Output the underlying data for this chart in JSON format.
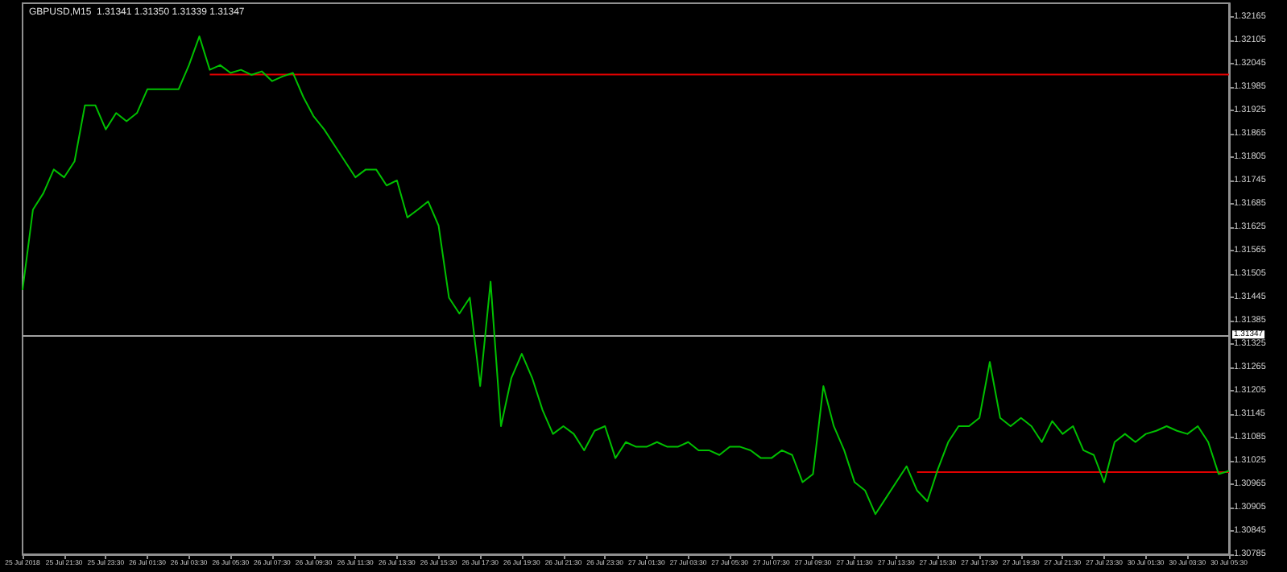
{
  "chart_data": {
    "type": "line",
    "title": "GBPUSD,M15  1.31341 1.31350 1.31339 1.31347",
    "categories": [
      "25 Jul 2018",
      null,
      null,
      null,
      "25 Jul 21:30",
      null,
      null,
      null,
      "25 Jul 23:30",
      null,
      null,
      null,
      "26 Jul 01:30",
      null,
      null,
      null,
      "26 Jul 03:30",
      null,
      null,
      null,
      "26 Jul 05:30",
      null,
      null,
      null,
      "26 Jul 07:30",
      null,
      null,
      null,
      "26 Jul 09:30",
      null,
      null,
      null,
      "26 Jul 11:30",
      null,
      null,
      null,
      "26 Jul 13:30",
      null,
      null,
      null,
      "26 Jul 15:30",
      null,
      null,
      null,
      "26 Jul 17:30",
      null,
      null,
      null,
      "26 Jul 19:30",
      null,
      null,
      null,
      "26 Jul 21:30",
      null,
      null,
      null,
      "26 Jul 23:30",
      null,
      null,
      null,
      "27 Jul 01:30",
      null,
      null,
      null,
      "27 Jul 03:30",
      null,
      null,
      null,
      "27 Jul 05:30",
      null,
      null,
      null,
      "27 Jul 07:30",
      null,
      null,
      null,
      "27 Jul 09:30",
      null,
      null,
      null,
      "27 Jul 11:30",
      null,
      null,
      null,
      "27 Jul 13:30",
      null,
      null,
      null,
      "27 Jul 15:30",
      null,
      null,
      null,
      "27 Jul 17:30",
      null,
      null,
      null,
      "27 Jul 19:30",
      null,
      null,
      null,
      "27 Jul 21:30",
      null,
      null,
      null,
      "27 Jul 23:30",
      null,
      null,
      null,
      "30 Jul 01:30",
      null,
      null,
      null,
      "30 Jul 03:30",
      null,
      null,
      null,
      "30 Jul 05:30"
    ],
    "ylim": [
      1.30785,
      1.322
    ],
    "yticks": [
      1.30785,
      1.30845,
      1.30905,
      1.30965,
      1.31025,
      1.31085,
      1.31145,
      1.31205,
      1.31265,
      1.31325,
      1.31385,
      1.31445,
      1.31505,
      1.31565,
      1.31625,
      1.31685,
      1.31745,
      1.31805,
      1.31865,
      1.31925,
      1.31985,
      1.32045,
      1.32105,
      1.32165
    ],
    "grid": false,
    "marker": "none",
    "series": [
      {
        "color": "#00c000",
        "values": [
          1.31464,
          1.3167,
          1.31712,
          1.31773,
          1.31753,
          1.31794,
          1.31938,
          1.31938,
          1.31876,
          1.31918,
          1.31897,
          1.31918,
          1.31979,
          1.31979,
          1.31979,
          1.31979,
          1.32041,
          1.32115,
          1.32029,
          1.32041,
          1.32021,
          1.32029,
          1.32016,
          1.32025,
          1.32,
          1.32012,
          1.32021,
          1.31959,
          1.31909,
          1.31876,
          1.31835,
          1.31794,
          1.31753,
          1.31773,
          1.31773,
          1.31732,
          1.31745,
          1.3165,
          1.3167,
          1.31691,
          1.31629,
          1.31444,
          1.31403,
          1.31444,
          1.31217,
          1.31485,
          1.31114,
          1.31238,
          1.313,
          1.31238,
          1.31155,
          1.31094,
          1.31114,
          1.31094,
          1.31052,
          1.31102,
          1.31114,
          1.31032,
          1.31073,
          1.31061,
          1.31061,
          1.31073,
          1.31061,
          1.31061,
          1.31073,
          1.31052,
          1.31052,
          1.3104,
          1.31061,
          1.31061,
          1.31052,
          1.31032,
          1.31032,
          1.31052,
          1.3104,
          1.3097,
          1.30991,
          1.31217,
          1.31114,
          1.31052,
          1.3097,
          1.30949,
          1.30888,
          1.30929,
          1.3097,
          1.31011,
          1.30949,
          1.30921,
          1.31003,
          1.31073,
          1.31114,
          1.31114,
          1.31135,
          1.31279,
          1.31135,
          1.31114,
          1.31135,
          1.31114,
          1.31073,
          1.31127,
          1.31094,
          1.31114,
          1.31052,
          1.3104,
          1.3097,
          1.31073,
          1.31094,
          1.31073,
          1.31094,
          1.31102,
          1.31114,
          1.31102,
          1.31094,
          1.31114,
          1.31073,
          1.30991,
          1.30999
        ]
      },
      {
        "type": "line",
        "color": "#e00000",
        "values": [
          null,
          null,
          null,
          null,
          null,
          null,
          null,
          null,
          null,
          null,
          null,
          null,
          null,
          null,
          null,
          null,
          null,
          null,
          1.32017,
          1.32017,
          1.32017,
          1.32017,
          1.32017,
          1.32017,
          1.32017,
          1.32017,
          1.32017,
          1.32017,
          1.32017,
          1.32017,
          1.32017,
          1.32017,
          1.32017,
          1.32017,
          1.32017,
          1.32017,
          1.32017,
          1.32017,
          1.32017,
          1.32017,
          1.32017,
          1.32017,
          1.32017,
          1.32017,
          1.32017,
          1.32017,
          1.32017,
          1.32017,
          1.32017,
          1.32017,
          1.32017,
          1.32017,
          1.32017,
          1.32017,
          1.32017,
          1.32017,
          1.32017,
          1.32017,
          1.32017,
          1.32017,
          1.32017,
          1.32017,
          1.32017,
          1.32017,
          1.32017,
          1.32017,
          1.32017,
          1.32017,
          1.32017,
          1.32017,
          1.32017,
          1.32017,
          1.32017,
          1.32017,
          1.32017,
          1.32017,
          1.32017,
          1.32017,
          1.32017,
          1.32017,
          1.32017,
          1.32017,
          1.32017,
          1.32017,
          1.32017,
          1.32017,
          1.32017,
          1.32017,
          1.32017,
          1.32017,
          1.32017,
          1.32017,
          1.32017,
          1.32017,
          1.32017,
          1.32017,
          1.32017,
          1.32017,
          1.32017,
          1.32017,
          1.32017,
          1.32017,
          1.32017,
          1.32017,
          1.32017,
          1.32017,
          1.32017,
          1.32017,
          1.32017,
          1.32017,
          1.32017,
          1.32017,
          1.32017,
          1.32017,
          1.32017,
          1.32017,
          1.32017
        ]
      },
      {
        "type": "line",
        "color": "#e00000",
        "values": [
          null,
          null,
          null,
          null,
          null,
          null,
          null,
          null,
          null,
          null,
          null,
          null,
          null,
          null,
          null,
          null,
          null,
          null,
          null,
          null,
          null,
          null,
          null,
          null,
          null,
          null,
          null,
          null,
          null,
          null,
          null,
          null,
          null,
          null,
          null,
          null,
          null,
          null,
          null,
          null,
          null,
          null,
          null,
          null,
          null,
          null,
          null,
          null,
          null,
          null,
          null,
          null,
          null,
          null,
          null,
          null,
          null,
          null,
          null,
          null,
          null,
          null,
          null,
          null,
          null,
          null,
          null,
          null,
          null,
          null,
          null,
          null,
          null,
          null,
          null,
          null,
          null,
          null,
          null,
          null,
          null,
          null,
          null,
          null,
          null,
          null,
          1.30996,
          1.30996,
          1.30996,
          1.30996,
          1.30996,
          1.30996,
          1.30996,
          1.30996,
          1.30996,
          1.30996,
          1.30996,
          1.30996,
          1.30996,
          1.30996,
          1.30996,
          1.30996,
          1.30996,
          1.30996,
          1.30996,
          1.30996,
          1.30996,
          1.30996,
          1.30996,
          1.30996,
          1.30996,
          1.30996,
          1.30996,
          1.30996,
          1.30996,
          1.30996,
          1.30996
        ]
      }
    ],
    "ref_lines": [
      {
        "axis": "y",
        "value": 1.31347,
        "label": "1.31347",
        "color": "#a0a0a0",
        "line_style": "solid"
      }
    ]
  }
}
